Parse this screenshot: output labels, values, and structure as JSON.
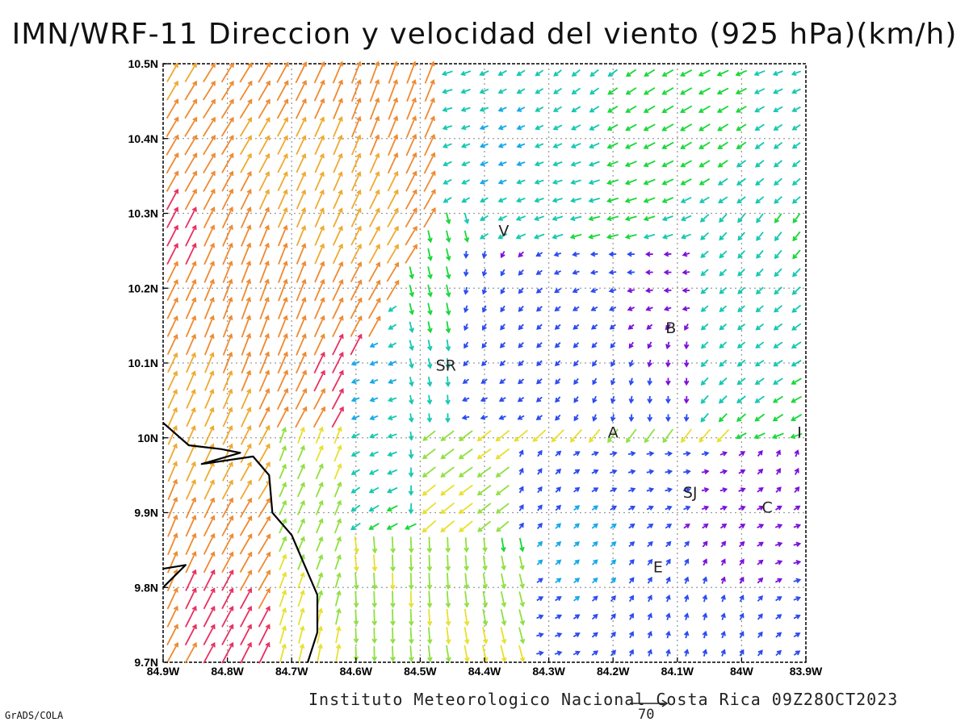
{
  "title": "IMN/WRF-11 Direccion y velocidad del viento (925 hPa)(km/h)",
  "footer": "Instituto Meteorologico Nacional Costa Rica 09Z28OCT2023",
  "credit": "GrADS/COLA",
  "reference_vector": {
    "label": "70",
    "speed": 70,
    "unit": "km/h"
  },
  "axes": {
    "x_ticks": [
      "84.9W",
      "84.8W",
      "84.7W",
      "84.6W",
      "84.5W",
      "84.4W",
      "84.3W",
      "84.2W",
      "84.1W",
      "84W",
      "83.9W"
    ],
    "y_ticks": [
      "10.5N",
      "10.4N",
      "10.3N",
      "10.2N",
      "10.1N",
      "10N",
      "9.9N",
      "9.8N",
      "9.7N"
    ],
    "lon_range": [
      -84.9,
      -83.9
    ],
    "lat_range": [
      9.7,
      10.5
    ],
    "grid": "dotted"
  },
  "places": [
    {
      "label": "V",
      "lon": -84.37,
      "lat": 10.27
    },
    {
      "label": "B",
      "lon": -84.11,
      "lat": 10.14
    },
    {
      "label": "SR",
      "lon": -84.46,
      "lat": 10.09
    },
    {
      "label": "A",
      "lon": -84.2,
      "lat": 10.0
    },
    {
      "label": "I",
      "lon": -83.91,
      "lat": 10.0
    },
    {
      "label": "SJ",
      "lon": -84.08,
      "lat": 9.92
    },
    {
      "label": "C",
      "lon": -83.96,
      "lat": 9.9
    },
    {
      "label": "E",
      "lon": -84.13,
      "lat": 9.82
    }
  ],
  "coastline": [
    [
      -84.9,
      10.02
    ],
    [
      -84.86,
      9.99
    ],
    [
      -84.81,
      9.985
    ],
    [
      -84.78,
      9.98
    ],
    [
      -84.84,
      9.965
    ],
    [
      -84.76,
      9.975
    ],
    [
      -84.735,
      9.95
    ],
    [
      -84.73,
      9.9
    ],
    [
      -84.7,
      9.87
    ],
    [
      -84.68,
      9.83
    ],
    [
      -84.66,
      9.79
    ],
    [
      -84.66,
      9.74
    ],
    [
      -84.675,
      9.7
    ]
  ],
  "coastline_nicoya": [
    [
      -84.9,
      9.8
    ],
    [
      -84.865,
      9.83
    ],
    [
      -84.9,
      9.825
    ]
  ],
  "color_scale": [
    "#7a10d8",
    "#2a4af0",
    "#15a8e8",
    "#15c8b0",
    "#18d838",
    "#90e040",
    "#e8e030",
    "#eeaa30",
    "#ee8a30",
    "#e83060"
  ]
}
